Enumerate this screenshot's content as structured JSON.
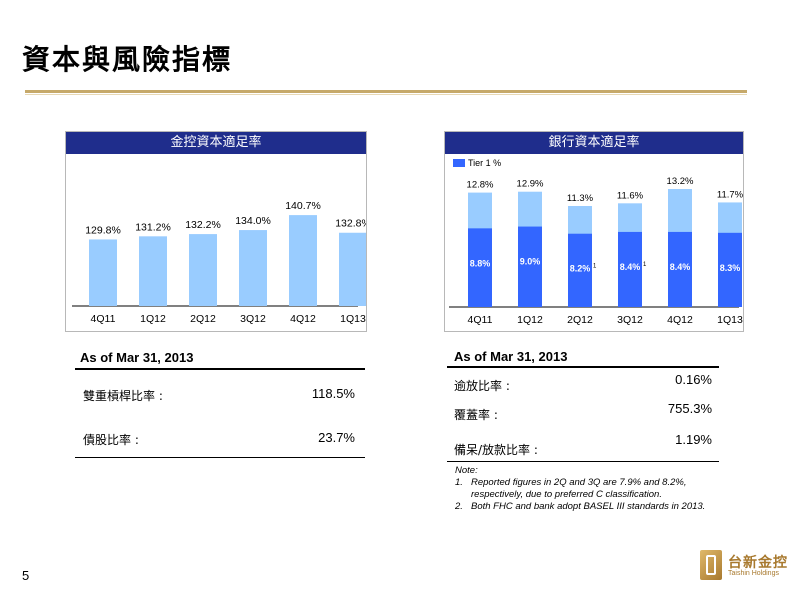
{
  "title": "資本與風險指標",
  "page_number": "5",
  "logo": {
    "cn": "台新金控",
    "en": "Taishin Holdings"
  },
  "colors": {
    "header_bg": "#1f2d8c",
    "bar_light": "#99ccff",
    "bar_dark": "#3366ff",
    "rule": "#c6a96a"
  },
  "chart_data": [
    {
      "type": "bar",
      "title": "金控資本適足率",
      "categories": [
        "4Q11",
        "1Q12",
        "2Q12",
        "3Q12",
        "4Q12",
        "1Q13"
      ],
      "values": [
        129.8,
        131.2,
        132.2,
        134.0,
        140.7,
        132.8
      ],
      "value_labels": [
        "129.8%",
        "131.2%",
        "132.2%",
        "134.0%",
        "140.7%",
        "132.8%"
      ],
      "footnote_marker": "2",
      "bar_color": "#99ccff"
    },
    {
      "type": "bar",
      "title": "銀行資本適足率",
      "categories": [
        "4Q11",
        "1Q12",
        "2Q12",
        "3Q12",
        "4Q12",
        "1Q13"
      ],
      "series": [
        {
          "name": "",
          "values": [
            12.8,
            12.9,
            11.3,
            11.6,
            13.2,
            11.7
          ],
          "labels": [
            "12.8%",
            "12.9%",
            "11.3%",
            "11.6%",
            "13.2%",
            "11.7%"
          ],
          "color": "#99ccff"
        },
        {
          "name": "Tier 1 %",
          "values": [
            8.8,
            9.0,
            8.2,
            8.4,
            8.4,
            8.3
          ],
          "labels": [
            "8.8%",
            "9.0%",
            "8.2%",
            "8.4%",
            "8.4%",
            "8.3%"
          ],
          "color": "#3366ff"
        }
      ],
      "footnote_marker": "2",
      "footnote_markers_bars": [
        "",
        "",
        "1",
        "1",
        "",
        ""
      ]
    }
  ],
  "left_table": {
    "heading": "As of Mar 31, 2013",
    "rows": [
      {
        "label": "雙重槓桿比率 :",
        "value": "118.5%"
      },
      {
        "label": "債股比率 :",
        "value": "23.7%"
      }
    ]
  },
  "right_table": {
    "heading": "As of Mar 31, 2013",
    "rows": [
      {
        "label": "逾放比率 :",
        "value": "0.16%"
      },
      {
        "label": "覆蓋率 :",
        "value": "755.3%"
      },
      {
        "label": "備呆/放款比率 :",
        "value": "1.19%"
      }
    ]
  },
  "notes": {
    "title": "Note:",
    "items": [
      {
        "n": "1.",
        "text": "Reported figures in 2Q and 3Q are 7.9% and 8.2%, respectively, due to preferred C classification."
      },
      {
        "n": "2.",
        "text": "Both FHC and bank adopt BASEL III standards in 2013."
      }
    ]
  }
}
